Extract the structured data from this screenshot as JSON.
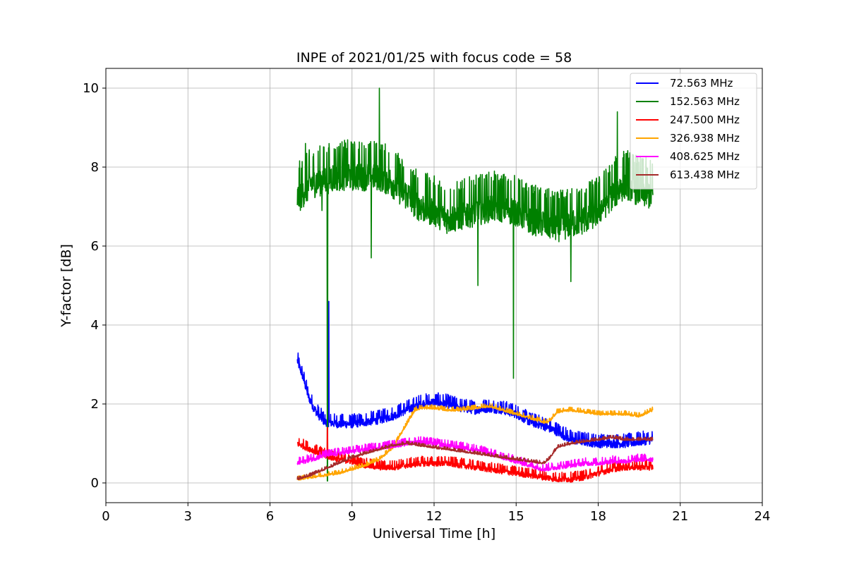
{
  "chart_data": {
    "type": "line",
    "title": "INPE of 2021/01/25 with focus code = 58",
    "xlabel": "Universal Time [h]",
    "ylabel": "Y-factor [dB]",
    "xlim": [
      0,
      24
    ],
    "ylim": [
      -0.5,
      10.5
    ],
    "xticks": [
      0,
      3,
      6,
      9,
      12,
      15,
      18,
      21,
      24
    ],
    "yticks": [
      0,
      2,
      4,
      6,
      8,
      10
    ],
    "grid": true,
    "legend_position": "top-right",
    "series": [
      {
        "name": " 72.563 MHz",
        "color": "#0000ff",
        "noise": 0.25,
        "x": [
          7.0,
          7.2,
          7.4,
          7.6,
          7.8,
          8.0,
          8.5,
          9.0,
          9.5,
          10.0,
          10.5,
          11.0,
          11.5,
          12.0,
          12.5,
          13.0,
          13.5,
          14.0,
          14.5,
          15.0,
          15.5,
          16.0,
          16.5,
          17.0,
          17.5,
          18.0,
          18.5,
          19.0,
          19.5,
          20.0
        ],
        "y": [
          3.1,
          2.7,
          2.2,
          1.9,
          1.7,
          1.55,
          1.5,
          1.5,
          1.55,
          1.6,
          1.7,
          1.85,
          2.0,
          2.05,
          2.0,
          1.9,
          1.85,
          1.9,
          1.85,
          1.75,
          1.55,
          1.45,
          1.3,
          1.1,
          1.05,
          1.0,
          1.0,
          1.0,
          1.05,
          1.1
        ]
      },
      {
        "name": "152.563 MHz",
        "color": "#008000",
        "noise": 0.9,
        "x": [
          7.0,
          7.5,
          8.0,
          8.5,
          9.0,
          9.5,
          10.0,
          10.5,
          11.0,
          11.5,
          12.0,
          12.5,
          13.0,
          13.5,
          14.0,
          14.5,
          15.0,
          15.5,
          16.0,
          16.5,
          17.0,
          17.5,
          18.0,
          18.5,
          19.0,
          19.5,
          20.0
        ],
        "y": [
          7.2,
          7.6,
          7.7,
          7.8,
          7.8,
          7.8,
          7.8,
          7.6,
          7.3,
          7.0,
          6.9,
          6.7,
          6.8,
          6.9,
          7.0,
          7.0,
          6.9,
          6.7,
          6.6,
          6.5,
          6.6,
          6.7,
          6.9,
          7.3,
          7.6,
          7.4,
          7.3
        ]
      },
      {
        "name": "247.500 MHz",
        "color": "#ff0000",
        "noise": 0.18,
        "x": [
          7.0,
          7.5,
          8.0,
          8.5,
          9.0,
          9.5,
          10.0,
          10.5,
          11.0,
          11.5,
          12.0,
          12.5,
          13.0,
          13.5,
          14.0,
          14.5,
          15.0,
          15.5,
          16.0,
          16.5,
          17.0,
          17.5,
          18.0,
          18.5,
          19.0,
          19.5,
          20.0
        ],
        "y": [
          1.0,
          0.85,
          0.7,
          0.6,
          0.55,
          0.45,
          0.4,
          0.4,
          0.45,
          0.5,
          0.5,
          0.5,
          0.45,
          0.4,
          0.35,
          0.3,
          0.25,
          0.2,
          0.15,
          0.1,
          0.1,
          0.15,
          0.25,
          0.35,
          0.4,
          0.4,
          0.4
        ]
      },
      {
        "name": "326.938 MHz",
        "color": "#ffa500",
        "noise": 0.08,
        "x": [
          7.0,
          7.5,
          8.0,
          8.5,
          9.0,
          9.5,
          10.0,
          10.5,
          11.0,
          11.3,
          11.5,
          12.0,
          12.5,
          13.0,
          13.5,
          14.0,
          14.5,
          15.0,
          15.5,
          16.0,
          16.2,
          16.5,
          17.0,
          17.5,
          18.0,
          18.5,
          19.0,
          19.5,
          20.0
        ],
        "y": [
          0.1,
          0.15,
          0.2,
          0.25,
          0.35,
          0.45,
          0.6,
          0.9,
          1.5,
          1.85,
          1.9,
          1.9,
          1.85,
          1.85,
          1.9,
          1.95,
          1.85,
          1.75,
          1.65,
          1.55,
          1.55,
          1.8,
          1.85,
          1.8,
          1.75,
          1.75,
          1.75,
          1.7,
          1.85
        ]
      },
      {
        "name": "408.625 MHz",
        "color": "#ff00ff",
        "noise": 0.14,
        "x": [
          7.0,
          7.5,
          8.0,
          8.5,
          9.0,
          9.5,
          10.0,
          10.5,
          11.0,
          11.5,
          12.0,
          12.5,
          13.0,
          13.5,
          14.0,
          14.5,
          15.0,
          15.5,
          16.0,
          16.5,
          17.0,
          17.5,
          18.0,
          18.5,
          19.0,
          19.5,
          20.0
        ],
        "y": [
          0.5,
          0.6,
          0.7,
          0.75,
          0.8,
          0.85,
          0.9,
          0.95,
          1.0,
          1.05,
          1.0,
          0.95,
          0.9,
          0.85,
          0.75,
          0.65,
          0.55,
          0.45,
          0.35,
          0.4,
          0.45,
          0.5,
          0.5,
          0.55,
          0.55,
          0.6,
          0.6
        ]
      },
      {
        "name": "613.438 MHz",
        "color": "#a52a2a",
        "noise": 0.06,
        "x": [
          7.0,
          7.5,
          8.0,
          8.5,
          9.0,
          9.5,
          10.0,
          10.5,
          11.0,
          11.5,
          12.0,
          12.5,
          13.0,
          13.5,
          14.0,
          14.5,
          15.0,
          15.5,
          16.0,
          16.2,
          16.5,
          17.0,
          17.5,
          18.0,
          18.5,
          19.0,
          19.5,
          20.0
        ],
        "y": [
          0.1,
          0.2,
          0.35,
          0.5,
          0.65,
          0.75,
          0.85,
          0.95,
          1.0,
          0.95,
          0.9,
          0.85,
          0.8,
          0.75,
          0.7,
          0.65,
          0.6,
          0.55,
          0.5,
          0.6,
          0.9,
          1.0,
          1.05,
          1.1,
          1.15,
          1.1,
          1.1,
          1.1
        ]
      }
    ],
    "spikes": [
      {
        "series": 1,
        "x": 7.3,
        "y": 8.6
      },
      {
        "series": 1,
        "x": 7.9,
        "y": 6.9
      },
      {
        "series": 1,
        "x": 8.1,
        "y": 0.05
      },
      {
        "series": 1,
        "x": 9.7,
        "y": 5.7
      },
      {
        "series": 1,
        "x": 10.0,
        "y": 10.0
      },
      {
        "series": 1,
        "x": 13.6,
        "y": 5.0
      },
      {
        "series": 1,
        "x": 14.9,
        "y": 2.65
      },
      {
        "series": 1,
        "x": 17.0,
        "y": 5.1
      },
      {
        "series": 1,
        "x": 18.7,
        "y": 9.4
      },
      {
        "series": 0,
        "x": 8.15,
        "y": 4.6
      },
      {
        "series": 2,
        "x": 8.1,
        "y": 1.4
      }
    ]
  }
}
